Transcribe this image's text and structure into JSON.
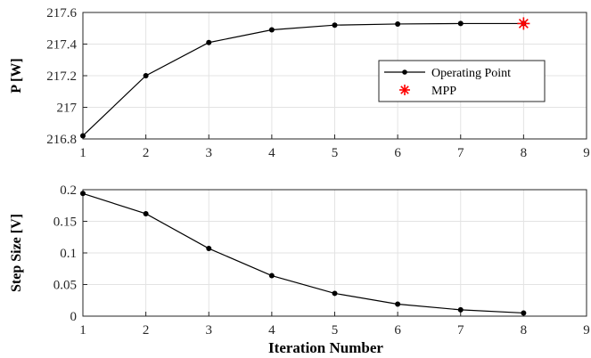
{
  "chart_data": [
    {
      "type": "line",
      "ylabel": "P [W]",
      "xlabel": "",
      "xlim": [
        1,
        9
      ],
      "ylim": [
        216.8,
        217.6
      ],
      "xticks": [
        "1",
        "2",
        "3",
        "4",
        "5",
        "6",
        "7",
        "8",
        "9"
      ],
      "yticks": [
        "216.8",
        "217",
        "217.2",
        "217.4",
        "217.6"
      ],
      "grid": true,
      "legend_position": "right",
      "series": [
        {
          "name": "Operating Point",
          "color": "#000000",
          "marker": "dot",
          "x": [
            1,
            2,
            3,
            4,
            5,
            6,
            7,
            8
          ],
          "y": [
            216.82,
            217.2,
            217.41,
            217.49,
            217.52,
            217.527,
            217.53,
            217.53
          ]
        },
        {
          "name": "MPP",
          "color": "#ff0000",
          "marker": "asterisk",
          "x": [
            8
          ],
          "y": [
            217.53
          ]
        }
      ]
    },
    {
      "type": "line",
      "ylabel": "Step Size [V]",
      "xlabel": "Iteration Number",
      "xlim": [
        1,
        9
      ],
      "ylim": [
        0,
        0.2
      ],
      "xticks": [
        "1",
        "2",
        "3",
        "4",
        "5",
        "6",
        "7",
        "8",
        "9"
      ],
      "yticks": [
        "0",
        "0.05",
        "0.1",
        "0.15",
        "0.2"
      ],
      "grid": true,
      "series": [
        {
          "color": "#000000",
          "marker": "dot",
          "x": [
            1,
            2,
            3,
            4,
            5,
            6,
            7,
            8
          ],
          "y": [
            0.194,
            0.162,
            0.107,
            0.064,
            0.036,
            0.019,
            0.01,
            0.005
          ]
        }
      ]
    }
  ]
}
